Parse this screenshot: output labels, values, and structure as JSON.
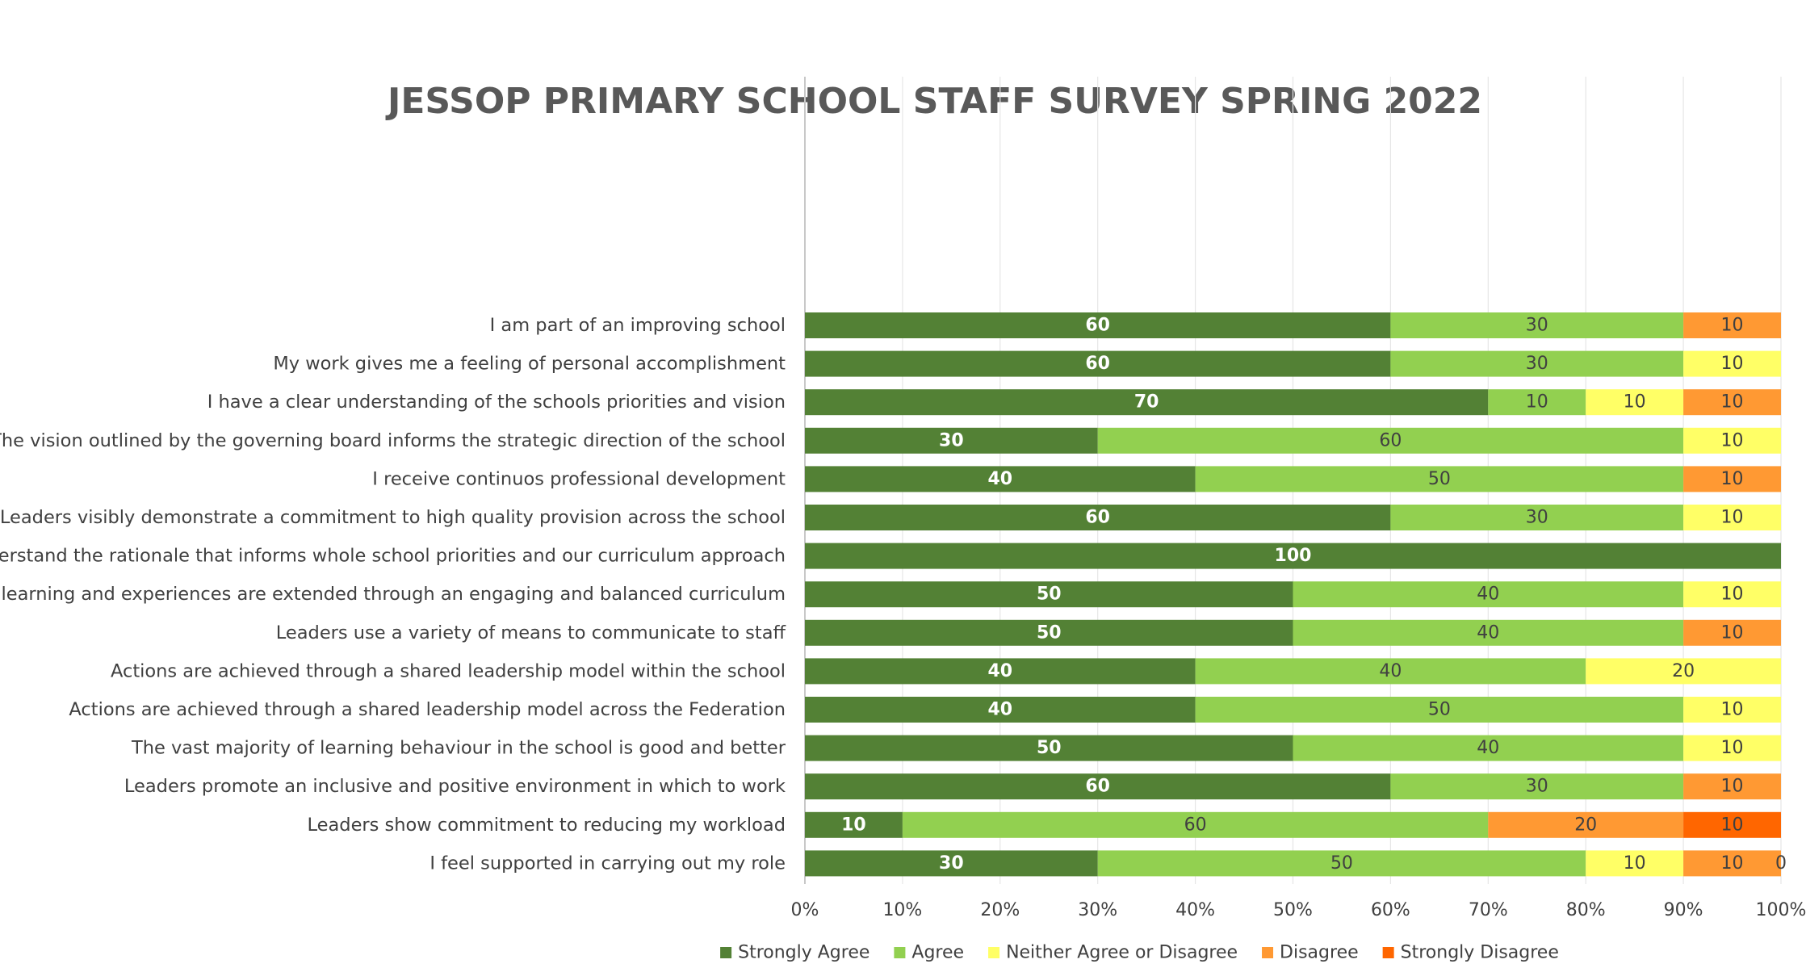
{
  "chart_data": {
    "type": "bar",
    "orientation": "horizontal",
    "stacked": "percent",
    "title": "JESSOP PRIMARY SCHOOL STAFF SURVEY SPRING 2022",
    "categories": [
      "I am part of an improving school",
      "My work gives me a feeling of personal accomplishment",
      "I have a clear understanding of the schools priorities and vision",
      "The vision outlined by the governing board informs the strategic direction of the school",
      "I receive continuos professional development",
      "Senior Leaders visibly demonstrate a commitment to high quality provision across the school",
      "I understand the rationale that informs whole school priorities and our curriculum approach",
      "Children's learning and experiences are extended through an engaging and balanced curriculum",
      "Leaders use a variety of means to communicate to staff",
      "Actions are achieved through a shared leadership model within the school",
      "Actions are achieved through a shared leadership model across the Federation",
      "The vast majority of learning behaviour in the school is good and better",
      "Leaders promote an inclusive and positive environment in which to work",
      "Leaders show commitment to reducing my workload",
      "I feel supported in carrying out my role"
    ],
    "series": [
      {
        "name": "Strongly Agree",
        "color": "#538135",
        "label_style": "white",
        "values": [
          60,
          60,
          70,
          30,
          40,
          60,
          100,
          50,
          50,
          40,
          40,
          50,
          60,
          10,
          30
        ]
      },
      {
        "name": "Agree",
        "color": "#92D050",
        "label_style": "dark",
        "values": [
          30,
          30,
          10,
          60,
          50,
          30,
          0,
          40,
          40,
          40,
          50,
          40,
          30,
          60,
          50
        ]
      },
      {
        "name": "Neither Agree or Disagree",
        "color": "#FFFF66",
        "label_style": "dark",
        "values": [
          0,
          10,
          10,
          10,
          0,
          10,
          0,
          10,
          0,
          20,
          10,
          10,
          0,
          0,
          10
        ]
      },
      {
        "name": "Disagree",
        "color": "#FF9933",
        "label_style": "dark",
        "values": [
          10,
          0,
          10,
          0,
          10,
          0,
          0,
          0,
          10,
          0,
          0,
          0,
          10,
          20,
          10
        ]
      },
      {
        "name": "Strongly Disagree",
        "color": "#FF6600",
        "label_style": "dark",
        "values": [
          0,
          0,
          0,
          0,
          0,
          0,
          0,
          0,
          0,
          0,
          0,
          0,
          0,
          10,
          0
        ]
      }
    ],
    "zero_labels": [
      {
        "category_index": 14,
        "series_index": 4,
        "text": "0"
      }
    ],
    "xaxis": {
      "ticks": [
        "0%",
        "10%",
        "20%",
        "30%",
        "40%",
        "50%",
        "60%",
        "70%",
        "80%",
        "90%",
        "100%"
      ],
      "xlim": [
        0,
        100
      ]
    },
    "grid": true,
    "legend": "bottom"
  }
}
